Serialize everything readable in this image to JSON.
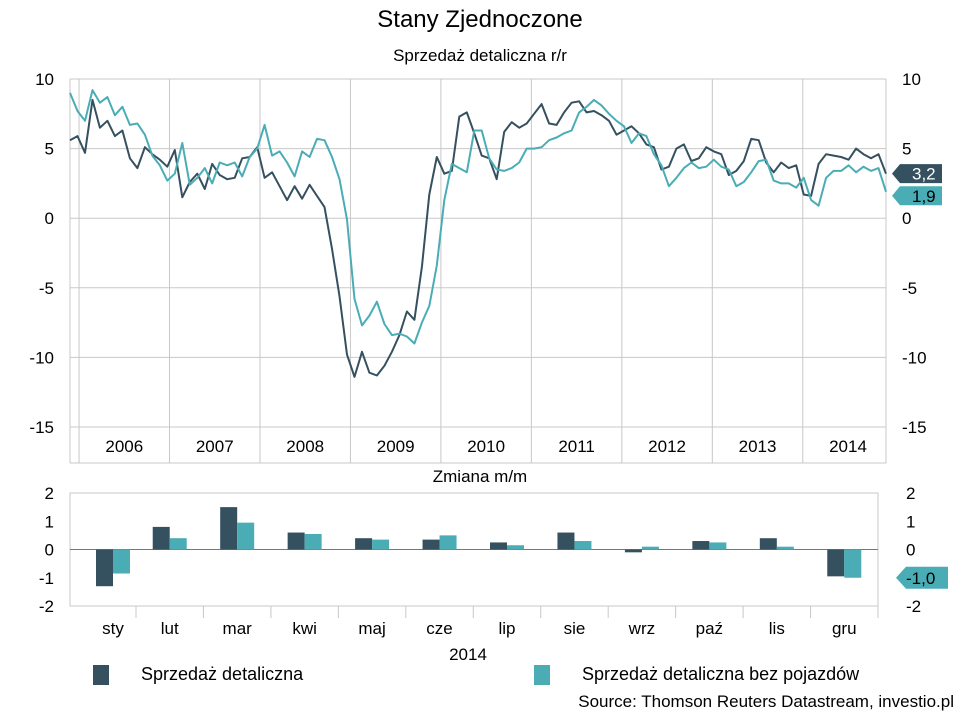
{
  "title": "Stany Zjednoczone",
  "colors": {
    "dark": "#35505f",
    "teal": "#4aadb5",
    "grid": "#c8c8c8",
    "axis": "#777777"
  },
  "chart_data": [
    {
      "type": "line",
      "title": "Sprzedaż detaliczna r/r",
      "xlabel": "",
      "ylabel": "",
      "x_tick_labels": [
        "2006",
        "2007",
        "2008",
        "2009",
        "2010",
        "2011",
        "2012",
        "2013",
        "2014"
      ],
      "x_range": [
        2005.9,
        2014.92
      ],
      "ylim": [
        -15,
        10
      ],
      "y_ticks": [
        10,
        5,
        0,
        -5,
        -10,
        -15
      ],
      "grid": true,
      "series": [
        {
          "name": "Sprzedaż detaliczna",
          "color": "#35505f",
          "end_label": "3,2",
          "values": [
            5.6,
            5.9,
            4.7,
            8.5,
            6.5,
            7.0,
            5.9,
            6.3,
            4.3,
            3.6,
            5.1,
            4.6,
            4.2,
            3.7,
            4.9,
            1.5,
            2.6,
            3.2,
            2.1,
            3.9,
            3.1,
            2.8,
            2.9,
            4.3,
            4.4,
            5.1,
            2.9,
            3.3,
            2.3,
            1.3,
            2.3,
            1.4,
            2.4,
            1.6,
            0.8,
            -2.2,
            -5.6,
            -9.8,
            -11.4,
            -9.6,
            -11.1,
            -11.3,
            -10.6,
            -9.6,
            -8.4,
            -6.7,
            -7.3,
            -3.5,
            1.7,
            4.4,
            3.2,
            3.4,
            7.3,
            7.6,
            6.1,
            4.5,
            4.3,
            2.8,
            6.2,
            6.9,
            6.5,
            6.8,
            7.5,
            8.2,
            6.8,
            6.7,
            7.6,
            8.3,
            8.4,
            7.6,
            7.7,
            7.4,
            7.0,
            6.0,
            6.3,
            6.6,
            6.1,
            5.3,
            5.1,
            3.5,
            3.7,
            5.0,
            5.3,
            4.1,
            4.3,
            5.1,
            4.8,
            4.6,
            3.1,
            3.4,
            4.1,
            5.7,
            5.6,
            4.0,
            3.3,
            4.0,
            3.6,
            3.8,
            1.7,
            1.6,
            3.9,
            4.6,
            4.5,
            4.4,
            4.2,
            5.0,
            4.6,
            4.3,
            4.6,
            3.2
          ]
        },
        {
          "name": "Sprzedaż detaliczna bez pojazdów",
          "color": "#4aadb5",
          "end_label": "1,9",
          "values": [
            9.0,
            7.7,
            7.0,
            9.2,
            8.3,
            8.7,
            7.4,
            8.0,
            6.7,
            6.8,
            6.0,
            4.5,
            3.8,
            2.7,
            3.2,
            5.4,
            2.4,
            2.9,
            3.6,
            2.5,
            4.0,
            3.8,
            4.0,
            3.0,
            4.4,
            5.0,
            6.7,
            4.5,
            4.8,
            4.0,
            3.0,
            4.8,
            4.4,
            5.7,
            5.6,
            4.4,
            2.8,
            -0.1,
            -5.8,
            -7.7,
            -7.0,
            -6.0,
            -7.6,
            -8.4,
            -8.3,
            -8.5,
            -9.0,
            -7.5,
            -6.3,
            -3.4,
            1.3,
            3.9,
            3.6,
            3.3,
            6.3,
            6.3,
            4.3,
            3.5,
            3.4,
            3.6,
            4.0,
            5.0,
            5.0,
            5.1,
            5.6,
            5.8,
            6.1,
            6.3,
            7.6,
            8.0,
            8.5,
            8.1,
            7.5,
            7.0,
            6.6,
            5.4,
            6.1,
            5.9,
            4.6,
            3.8,
            2.3,
            2.9,
            3.6,
            4.0,
            3.6,
            3.7,
            4.2,
            3.7,
            3.5,
            2.3,
            2.6,
            3.3,
            4.1,
            4.2,
            2.7,
            2.5,
            2.5,
            2.2,
            2.9,
            1.3,
            0.9,
            2.9,
            3.4,
            3.4,
            3.8,
            3.3,
            3.7,
            3.4,
            3.6,
            1.9
          ]
        }
      ]
    },
    {
      "type": "bar",
      "title": "Zmiana m/m",
      "xlabel": "2014",
      "categories": [
        "sty",
        "lut",
        "mar",
        "kwi",
        "maj",
        "cze",
        "lip",
        "sie",
        "wrz",
        "paź",
        "lis",
        "gru"
      ],
      "ylim": [
        -2,
        2
      ],
      "y_ticks": [
        2,
        1,
        0,
        -1,
        -2
      ],
      "end_label": "-1,0",
      "series": [
        {
          "name": "Sprzedaż detaliczna",
          "color": "#35505f",
          "values": [
            -1.3,
            0.8,
            1.5,
            0.6,
            0.4,
            0.35,
            0.25,
            0.6,
            -0.1,
            0.3,
            0.4,
            -0.95
          ]
        },
        {
          "name": "Sprzedaż detaliczna bez pojazdów",
          "color": "#4aadb5",
          "values": [
            -0.85,
            0.4,
            0.95,
            0.55,
            0.35,
            0.5,
            0.15,
            0.3,
            0.1,
            0.25,
            0.1,
            -1.0
          ]
        }
      ]
    }
  ],
  "legend": [
    "Sprzedaż detaliczna",
    "Sprzedaż detaliczna bez pojazdów"
  ],
  "source": "Source: Thomson Reuters Datastream, investio.pl"
}
